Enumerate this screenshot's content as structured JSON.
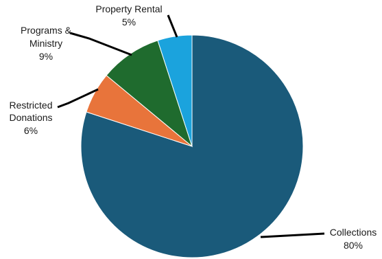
{
  "chart_data": {
    "type": "pie",
    "slices": [
      {
        "label": "Collections",
        "value": 80,
        "value_label": "80%",
        "color": "#1a5a7a"
      },
      {
        "label": "Restricted Donations",
        "value": 6,
        "value_label": "6%",
        "color": "#e8743b"
      },
      {
        "label": "Programs & Ministry",
        "value": 9,
        "value_label": "9%",
        "color": "#1f6b2e"
      },
      {
        "label": "Property Rental",
        "value": 5,
        "value_label": "5%",
        "color": "#1ba3dd"
      }
    ],
    "start": "12 o'clock",
    "direction": "clockwise",
    "legend": "none (leader-line labels)"
  },
  "labels": {
    "property_rental": {
      "line1": "Property Rental",
      "pct": "5%"
    },
    "programs": {
      "line1": "Programs &",
      "line2": "Ministry",
      "pct": "9%"
    },
    "restricted": {
      "line1": "Restricted",
      "line2": "Donations",
      "pct": "6%"
    },
    "collections": {
      "line1": "Collections",
      "pct": "80%"
    }
  }
}
